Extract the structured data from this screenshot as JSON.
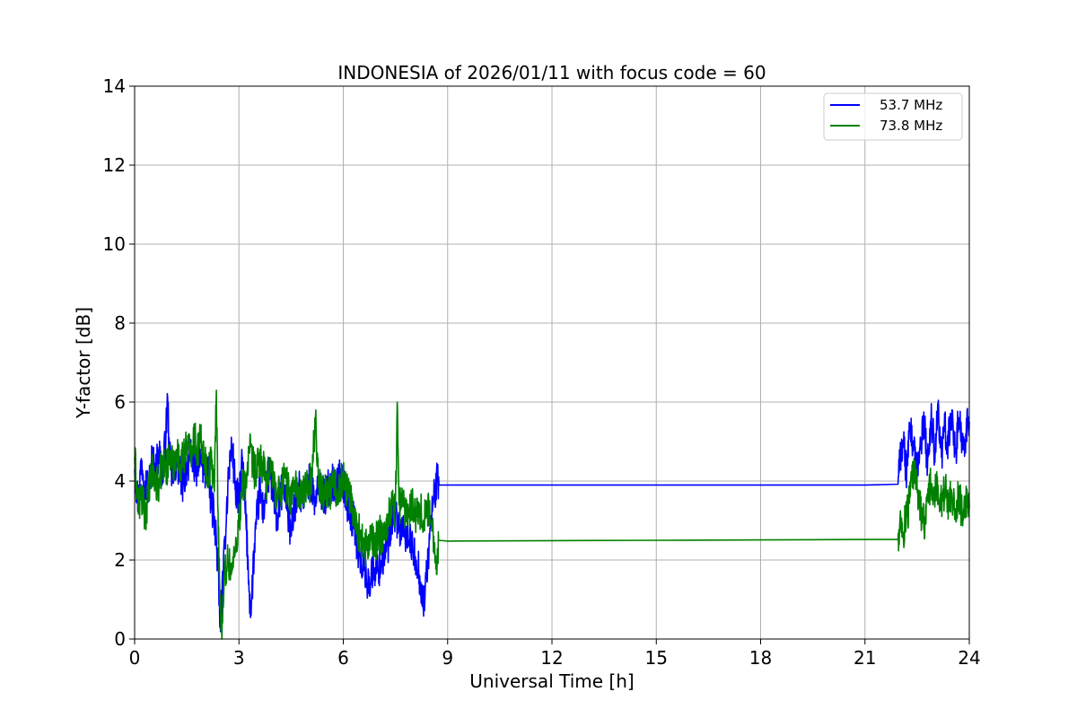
{
  "chart_data": {
    "type": "line",
    "title": "INDONESIA of 2026/01/11 with focus code = 60",
    "xlabel": "Universal Time [h]",
    "ylabel": "Y-factor [dB]",
    "xlim": [
      0,
      24
    ],
    "ylim": [
      0,
      14
    ],
    "xticks": [
      0,
      3,
      6,
      9,
      12,
      15,
      18,
      21,
      24
    ],
    "yticks": [
      0,
      2,
      4,
      6,
      8,
      10,
      12,
      14
    ],
    "grid": true,
    "legend_position": "top-right",
    "series": [
      {
        "name": "53.7 MHz",
        "color": "#0000ff",
        "x": [
          0.0,
          0.1,
          0.2,
          0.3,
          0.4,
          0.5,
          0.6,
          0.7,
          0.8,
          0.9,
          0.95,
          1.0,
          1.1,
          1.2,
          1.3,
          1.4,
          1.5,
          1.6,
          1.7,
          1.8,
          1.9,
          2.0,
          2.1,
          2.2,
          2.3,
          2.4,
          2.45,
          2.5,
          2.55,
          2.6,
          2.7,
          2.8,
          2.9,
          3.0,
          3.1,
          3.2,
          3.3,
          3.35,
          3.4,
          3.5,
          3.6,
          3.7,
          3.8,
          3.9,
          4.0,
          4.1,
          4.2,
          4.3,
          4.4,
          4.5,
          4.6,
          4.7,
          4.8,
          4.9,
          5.0,
          5.1,
          5.2,
          5.3,
          5.4,
          5.5,
          5.6,
          5.7,
          5.8,
          5.9,
          6.0,
          6.1,
          6.2,
          6.3,
          6.4,
          6.5,
          6.6,
          6.7,
          6.8,
          6.9,
          7.0,
          7.1,
          7.2,
          7.3,
          7.4,
          7.5,
          7.6,
          7.7,
          7.8,
          7.9,
          8.0,
          8.1,
          8.2,
          8.3,
          8.4,
          8.5,
          8.6,
          8.7,
          8.75,
          9.0,
          12.0,
          15.0,
          18.0,
          21.0,
          21.95,
          22.0,
          22.1,
          22.2,
          22.3,
          22.4,
          22.5,
          22.6,
          22.7,
          22.8,
          22.9,
          23.0,
          23.1,
          23.2,
          23.3,
          23.4,
          23.5,
          23.6,
          23.7,
          23.8,
          23.9,
          24.0
        ],
        "y": [
          4.3,
          3.5,
          4.5,
          4.0,
          3.8,
          4.6,
          4.2,
          4.8,
          4.1,
          5.2,
          6.1,
          4.6,
          4.0,
          4.5,
          4.2,
          3.9,
          4.4,
          4.6,
          4.5,
          4.3,
          4.7,
          4.2,
          4.4,
          3.4,
          3.1,
          1.8,
          0.3,
          0.9,
          1.5,
          2.6,
          4.2,
          4.9,
          3.8,
          3.4,
          4.6,
          3.0,
          1.2,
          0.6,
          1.7,
          2.9,
          3.8,
          3.2,
          3.9,
          4.2,
          3.5,
          3.0,
          3.7,
          3.9,
          3.3,
          2.6,
          3.4,
          3.9,
          3.6,
          3.7,
          4.0,
          3.8,
          3.4,
          3.9,
          3.7,
          3.6,
          3.9,
          4.0,
          3.8,
          4.1,
          3.9,
          3.5,
          3.2,
          3.0,
          2.4,
          2.0,
          1.8,
          1.4,
          1.6,
          1.8,
          1.7,
          2.0,
          2.2,
          2.4,
          2.9,
          3.2,
          2.8,
          2.6,
          2.7,
          2.5,
          2.2,
          2.0,
          1.6,
          0.8,
          1.6,
          2.8,
          3.6,
          4.0,
          3.9,
          3.9,
          3.9,
          3.9,
          3.9,
          3.9,
          3.92,
          4.6,
          5.0,
          4.2,
          5.3,
          4.8,
          4.1,
          5.0,
          5.5,
          4.4,
          5.6,
          4.8,
          5.9,
          4.6,
          5.3,
          5.0,
          5.8,
          4.7,
          5.6,
          4.9,
          5.2,
          5.5
        ],
        "x_ranges": [
          [
            0,
            8.75
          ],
          [
            21.95,
            24
          ]
        ]
      },
      {
        "name": "73.8 MHz",
        "color": "#008000",
        "x": [
          0.0,
          0.1,
          0.2,
          0.3,
          0.4,
          0.5,
          0.6,
          0.7,
          0.8,
          0.9,
          1.0,
          1.1,
          1.2,
          1.3,
          1.4,
          1.5,
          1.6,
          1.7,
          1.8,
          1.9,
          2.0,
          2.1,
          2.2,
          2.3,
          2.35,
          2.4,
          2.45,
          2.5,
          2.55,
          2.6,
          2.7,
          2.8,
          2.9,
          3.0,
          3.1,
          3.2,
          3.3,
          3.4,
          3.5,
          3.6,
          3.7,
          3.8,
          3.9,
          4.0,
          4.1,
          4.2,
          4.3,
          4.4,
          4.5,
          4.6,
          4.7,
          4.8,
          4.9,
          5.0,
          5.1,
          5.2,
          5.3,
          5.4,
          5.5,
          5.6,
          5.7,
          5.8,
          5.9,
          6.0,
          6.1,
          6.2,
          6.3,
          6.4,
          6.5,
          6.6,
          6.7,
          6.8,
          6.9,
          7.0,
          7.1,
          7.2,
          7.3,
          7.4,
          7.5,
          7.55,
          7.6,
          7.7,
          7.8,
          7.9,
          8.0,
          8.1,
          8.2,
          8.3,
          8.4,
          8.5,
          8.6,
          8.7,
          8.75,
          9.0,
          12.0,
          15.0,
          18.0,
          21.0,
          21.95,
          22.0,
          22.1,
          22.2,
          22.3,
          22.4,
          22.5,
          22.6,
          22.7,
          22.8,
          22.9,
          23.0,
          23.1,
          23.2,
          23.3,
          23.4,
          23.5,
          23.6,
          23.7,
          23.8,
          23.9,
          24.0
        ],
        "y": [
          4.6,
          3.4,
          3.6,
          3.1,
          3.7,
          4.2,
          4.0,
          3.9,
          4.5,
          4.3,
          4.6,
          4.4,
          4.8,
          4.4,
          4.6,
          5.0,
          4.7,
          5.2,
          4.8,
          5.0,
          4.7,
          4.1,
          4.5,
          4.0,
          6.3,
          3.2,
          1.2,
          0.2,
          0.8,
          1.8,
          2.0,
          1.7,
          2.3,
          3.0,
          3.8,
          4.0,
          4.8,
          4.4,
          4.2,
          4.6,
          4.3,
          3.9,
          4.5,
          4.0,
          3.6,
          3.8,
          4.2,
          3.8,
          3.6,
          4.0,
          3.7,
          3.5,
          3.9,
          3.8,
          4.2,
          5.6,
          3.9,
          3.7,
          3.9,
          3.6,
          4.0,
          3.8,
          3.9,
          4.1,
          3.8,
          3.6,
          3.2,
          2.8,
          2.6,
          2.2,
          2.4,
          2.5,
          2.3,
          2.7,
          2.6,
          2.8,
          3.1,
          3.4,
          3.3,
          6.0,
          3.4,
          3.5,
          3.2,
          3.3,
          3.5,
          3.1,
          3.3,
          3.0,
          3.4,
          3.0,
          2.6,
          2.0,
          2.5,
          2.48,
          2.49,
          2.5,
          2.51,
          2.52,
          2.52,
          2.9,
          2.7,
          3.1,
          3.6,
          4.3,
          3.8,
          3.3,
          2.9,
          3.5,
          3.9,
          3.6,
          3.9,
          3.4,
          3.8,
          3.5,
          3.7,
          3.3,
          3.6,
          3.2,
          3.4,
          3.3
        ],
        "x_ranges": [
          [
            0,
            8.75
          ],
          [
            21.95,
            24
          ]
        ]
      }
    ]
  }
}
